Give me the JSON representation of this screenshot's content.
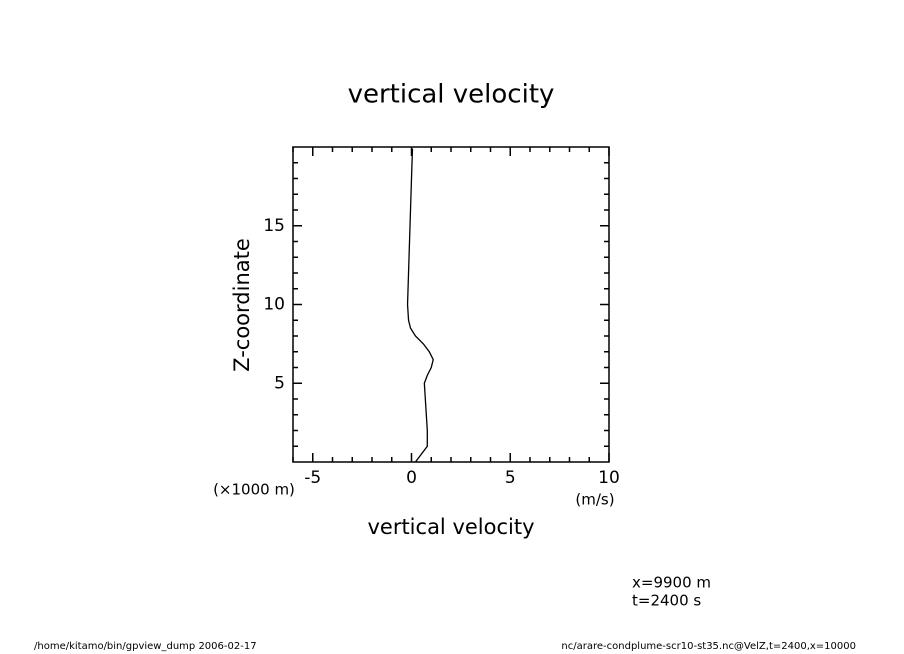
{
  "chart_data": {
    "type": "line",
    "title": "vertical velocity",
    "xlabel": "vertical velocity",
    "ylabel": "Z-coordinate",
    "xunit": "(m/s)",
    "yunit": "(×1000 m)",
    "annotations": [
      "x=9900  m",
      "t=2400  s"
    ],
    "footer_left": "/home/kitamo/bin/gpview_dump  2006-02-17",
    "footer_right": "nc/arare-condplume-scr10-st35.nc@VelZ,t=2400,x=10000",
    "y": [
      0,
      1,
      2,
      3,
      4,
      5,
      5.5,
      6,
      6.5,
      7,
      7.5,
      8,
      8.5,
      9,
      10,
      12,
      14,
      16,
      18,
      19.9
    ],
    "values": [
      0.2,
      0.8,
      0.8,
      0.75,
      0.7,
      0.65,
      0.8,
      1.0,
      1.1,
      0.9,
      0.6,
      0.2,
      -0.05,
      -0.15,
      -0.2,
      -0.15,
      -0.1,
      -0.05,
      0,
      0.05
    ],
    "color": "#000000",
    "xlim": [
      -6,
      10
    ],
    "xticks": [
      -5,
      0,
      5,
      10
    ],
    "xminorticks": [
      -6,
      -4,
      -3,
      -2,
      -1,
      1,
      2,
      3,
      4,
      6,
      7,
      8,
      9
    ],
    "ylim": [
      0,
      20
    ],
    "yticks": [
      5,
      10,
      15
    ],
    "yminorticks": [
      1,
      2,
      3,
      4,
      6,
      7,
      8,
      9,
      11,
      12,
      13,
      14,
      16,
      17,
      18,
      19
    ]
  }
}
